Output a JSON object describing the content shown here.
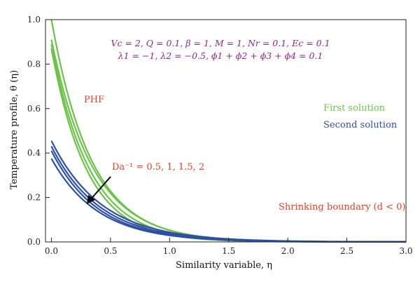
{
  "chart_data": {
    "type": "line",
    "xlabel": "Similarity variable, η",
    "ylabel": "Temperature profile, θ (η)",
    "xlim": [
      -0.05,
      3.0
    ],
    "ylim": [
      0.0,
      1.0
    ],
    "xticks": [
      "0.0",
      "0.5",
      "1.0",
      "1.5",
      "2.0",
      "2.5",
      "3.0"
    ],
    "yticks": [
      "0.0",
      "0.2",
      "0.4",
      "0.6",
      "0.8",
      "1.0"
    ],
    "grid": false,
    "legend": [
      {
        "label": "First solution",
        "color": "#6cc24a"
      },
      {
        "label": "Second solution",
        "color": "#2d4fa6"
      }
    ],
    "annotations": {
      "params_line1": "Vc = 2, Q = 0.1, β = 1, M = 1, Nr = 0.1, Ec = 0.1",
      "params_line2": "λ1 = −1, λ2 = −0.5, ϕ1 + ϕ2 + ϕ3 + ϕ4 = 0.1",
      "phf": "PHF",
      "da_label": "Da⁻¹ = 0.5, 1, 1.5, 2",
      "shrinking": "Shrinking boundary (d < 0)"
    },
    "series": [
      {
        "group": "First solution",
        "color": "#6cc24a",
        "theta0": 1.0,
        "decay": 2.95
      },
      {
        "group": "First solution",
        "color": "#6cc24a",
        "theta0": 0.91,
        "decay": 2.85
      },
      {
        "group": "First solution",
        "color": "#6cc24a",
        "theta0": 0.89,
        "decay": 3.1
      },
      {
        "group": "First solution",
        "color": "#6cc24a",
        "theta0": 0.87,
        "decay": 3.3
      },
      {
        "group": "Second solution",
        "color": "#2d4fa6",
        "theta0": 0.455,
        "decay": 2.35
      },
      {
        "group": "Second solution",
        "color": "#2d4fa6",
        "theta0": 0.43,
        "decay": 2.45
      },
      {
        "group": "Second solution",
        "color": "#2d4fa6",
        "theta0": 0.41,
        "decay": 2.55
      },
      {
        "group": "Second solution",
        "color": "#2d4fa6",
        "theta0": 0.375,
        "decay": 2.55
      }
    ]
  }
}
